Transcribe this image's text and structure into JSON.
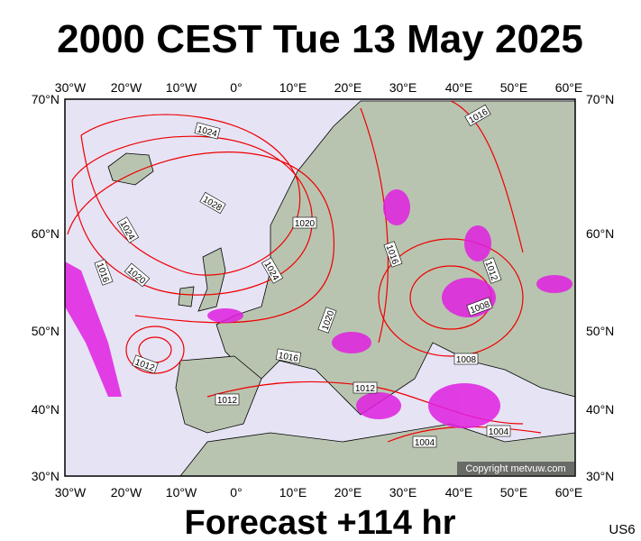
{
  "header": {
    "title": "2000 CEST Tue 13 May 2025"
  },
  "map": {
    "longitudes": [
      "30°W",
      "20°W",
      "10°W",
      "0°",
      "10°E",
      "20°E",
      "30°E",
      "40°E",
      "50°E",
      "60°E"
    ],
    "latitudes": [
      "70°N",
      "60°N",
      "50°N",
      "40°N",
      "30°N"
    ],
    "isobar_labels": [
      "1024",
      "1028",
      "1024",
      "1016",
      "1020",
      "1020",
      "1024",
      "1016",
      "1016",
      "1012",
      "1008",
      "1020",
      "1016",
      "1008",
      "1012",
      "1012",
      "1012",
      "1004",
      "1004"
    ],
    "copyright": "Copyright metvuw.com"
  },
  "footer": {
    "forecast": "Forecast +114 hr",
    "code": "US6"
  }
}
